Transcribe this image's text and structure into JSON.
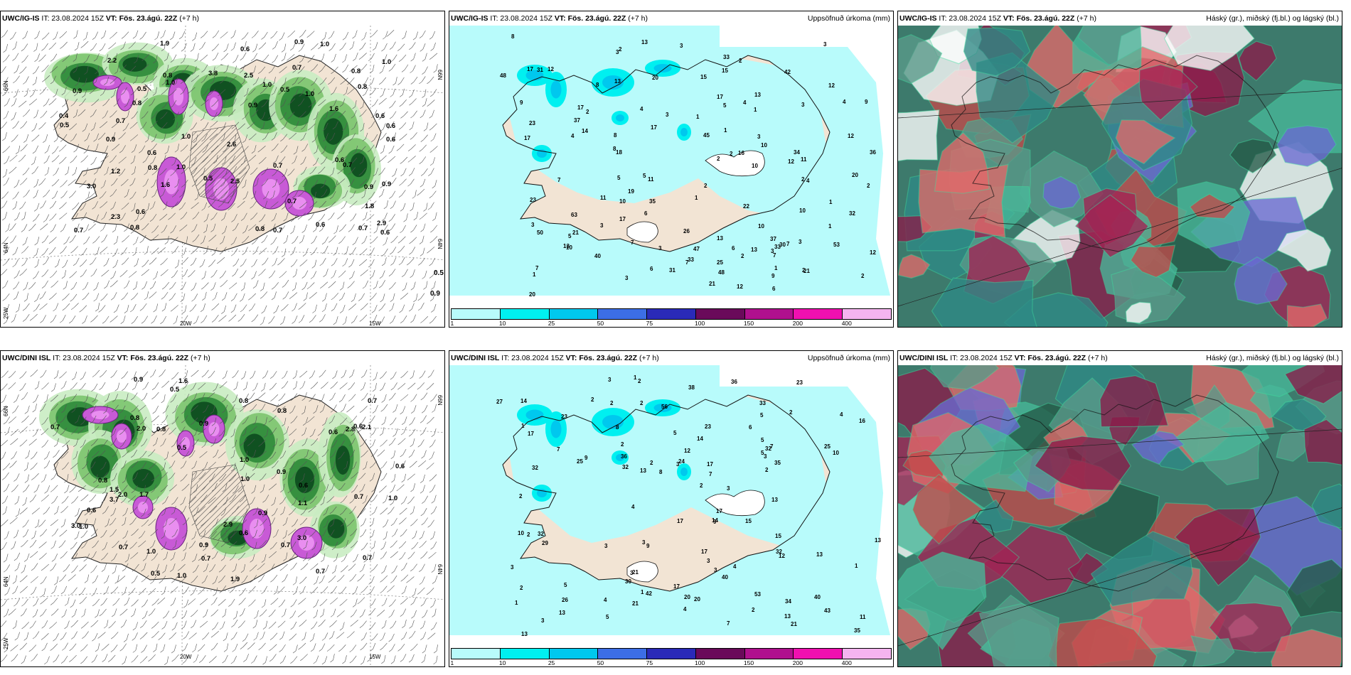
{
  "panels": {
    "ig_wind": {
      "model": "UWC/IG-IS",
      "it": "IT: 23.08.2024 15Z",
      "vt_label": "VT:",
      "vt": "Fös. 23.ágú. 22Z",
      "lead": "(+7 h)",
      "lat_left_top": "66N",
      "lat_left_mid": "64N",
      "lat_left_bot": "25W",
      "lat_right_top": "66N",
      "lat_right_mid": "64N",
      "lon_a": "20W",
      "lon_b": "15W",
      "edge_values": [
        "0.5",
        "0.9"
      ]
    },
    "ig_precip": {
      "model": "UWC/IG-IS",
      "it": "IT: 23.08.2024 15Z",
      "vt_label": "VT:",
      "vt": "Fös. 23.ágú. 22Z",
      "lead": "(+7 h)",
      "field": "Uppsöfnuð úrkoma (mm)"
    },
    "ig_cloud": {
      "model": "UWC/IG-IS",
      "it": "IT: 23.08.2024 15Z",
      "vt_label": "VT:",
      "vt": "Fös. 23.ágú. 22Z",
      "lead": "(+7 h)",
      "field": "Háský (gr.), miðský (fj.bl.) og lágský (bl.)"
    },
    "dini_wind": {
      "model": "UWC/DINI ISL",
      "it": "IT: 23.08.2024 15Z",
      "vt_label": "VT:",
      "vt": "Fös. 23.ágú. 22Z",
      "lead": "(+7 h)",
      "lat_left_top": "66N",
      "lat_left_mid": "64N",
      "lat_left_bot": "25W",
      "lat_right_top": "66N",
      "lat_right_mid": "64N",
      "lon_a": "20W",
      "lon_b": "15W"
    },
    "dini_precip": {
      "model": "UWC/DINI ISL",
      "it": "IT: 23.08.2024 15Z",
      "vt_label": "VT:",
      "vt": "Fös. 23.ágú. 22Z",
      "lead": "(+7 h)",
      "field": "Uppsöfnuð úrkoma (mm)"
    },
    "dini_cloud": {
      "model": "UWC/DINI ISL",
      "it": "IT: 23.08.2024 15Z",
      "vt_label": "VT:",
      "vt": "Fös. 23.ágú. 22Z",
      "lead": "(+7 h)",
      "field": "Háský (gr.), miðský (fj.bl.) og lágský (bl.)"
    }
  },
  "legend": {
    "ticks": [
      "1",
      "10",
      "25",
      "50",
      "75",
      "100",
      "150",
      "200",
      "400"
    ],
    "colors": [
      "#b8fbfb",
      "#00f0f0",
      "#00c8ee",
      "#3c6ee6",
      "#2a2ab8",
      "#6a0a5a",
      "#b0108e",
      "#f010b0",
      "#f5b4f0"
    ]
  },
  "precip_values_top": [
    "6",
    "47",
    "45",
    "48",
    "36",
    "50",
    "33",
    "23",
    "34",
    "37",
    "63",
    "53",
    "31",
    "12",
    "42",
    "48",
    "37",
    "33",
    "32",
    "11",
    "12",
    "4",
    "4",
    "18",
    "25",
    "40",
    "33",
    "21",
    "13",
    "8",
    "17",
    "10",
    "10",
    "26",
    "3",
    "4",
    "31",
    "30",
    "11",
    "11",
    "20",
    "10",
    "5",
    "3",
    "17",
    "17",
    "23",
    "35",
    "13",
    "20",
    "7",
    "9",
    "5",
    "10",
    "9",
    "7",
    "10",
    "17",
    "4",
    "7",
    "1",
    "5",
    "14",
    "8",
    "15",
    "7",
    "19",
    "3",
    "1",
    "8",
    "9",
    "13",
    "3",
    "16",
    "12",
    "21",
    "12",
    "20",
    "21",
    "12",
    "8",
    "6",
    "22",
    "15",
    "12",
    "3",
    "4",
    "17",
    "6",
    "17",
    "10",
    "13",
    "13",
    "13",
    "7",
    "2",
    "2",
    "1",
    "1",
    "2",
    "3",
    "3",
    "3",
    "2",
    "2",
    "3",
    "6",
    "2",
    "1",
    "5",
    "7",
    "2",
    "3",
    "3",
    "2",
    "1",
    "1",
    "2",
    "1",
    "3",
    "2",
    "2"
  ],
  "precip_values_bot": [
    "3",
    "13",
    "17",
    "17",
    "56",
    "36",
    "40",
    "33",
    "34",
    "30",
    "35",
    "32",
    "42",
    "38",
    "53",
    "36",
    "32",
    "29",
    "17",
    "16",
    "27",
    "13",
    "4",
    "15",
    "12",
    "5",
    "2",
    "14",
    "10",
    "40",
    "43",
    "9",
    "23",
    "13",
    "14",
    "7",
    "20",
    "35",
    "32",
    "17",
    "25",
    "21",
    "8",
    "21",
    "13",
    "13",
    "12",
    "20",
    "13",
    "11",
    "17",
    "24",
    "14",
    "13",
    "5",
    "23",
    "25",
    "8",
    "3",
    "15",
    "7",
    "5",
    "32",
    "4",
    "21",
    "32",
    "23",
    "26",
    "5",
    "17",
    "9",
    "9",
    "2",
    "3",
    "4",
    "10",
    "6",
    "2",
    "5",
    "5",
    "3",
    "2",
    "7",
    "2",
    "2",
    "2",
    "7",
    "3",
    "1",
    "1",
    "3",
    "2",
    "2",
    "4",
    "3",
    "3",
    "3",
    "1",
    "2",
    "1",
    "2",
    "2",
    "1",
    "4",
    "3",
    "2",
    "3"
  ],
  "wind_values_top": [
    "1.0",
    "0.6",
    "0.5",
    "0.6",
    "1.0",
    "0.9",
    "1.0",
    "0.9",
    "0.9",
    "0.8",
    "0.8",
    "0.7",
    "1.6",
    "1.6",
    "3.0",
    "2.6",
    "0.6",
    "0.4",
    "1.9",
    "3.8",
    "2.9",
    "2.5",
    "2.3",
    "1.2",
    "0.9",
    "1.0",
    "0.7",
    "0.7",
    "0.8",
    "1.0",
    "0.8",
    "0.6",
    "0.9",
    "0.6",
    "0.7",
    "0.5",
    "0.6",
    "0.7",
    "0.8",
    "0.6",
    "0.7",
    "0.9",
    "0.5",
    "2.5",
    "1.8",
    "2.2",
    "1.0",
    "1.0",
    "0.8",
    "0.6",
    "0.7",
    "0.5",
    "0.6",
    "0.7",
    "0.8"
  ],
  "wind_values_bot": [
    "1.0",
    "0.7",
    "0.6",
    "0.9",
    "0.8",
    "0.5",
    "1.0",
    "0.7",
    "0.6",
    "0.9",
    "0.7",
    "0.9",
    "1.0",
    "0.7",
    "1.6",
    "1.5",
    "2.8",
    "3.0",
    "2.0",
    "1.7",
    "0.9",
    "0.8",
    "0.7",
    "1.0",
    "1.1",
    "0.6",
    "0.5",
    "0.7",
    "0.9",
    "0.6",
    "0.8",
    "0.7",
    "1.0",
    "3.7",
    "2.9",
    "2.1",
    "2.0",
    "1.9",
    "3.0",
    "0.6",
    "0.8",
    "0.6",
    "1.0",
    "0.7",
    "0.5",
    "0.8"
  ]
}
